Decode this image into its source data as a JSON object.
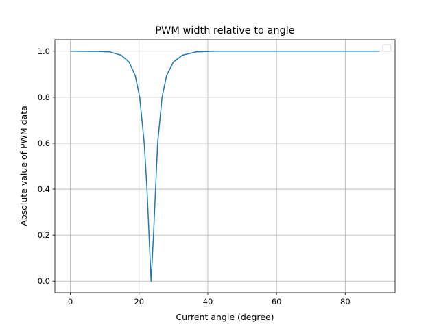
{
  "chart_data": {
    "type": "line",
    "title": "PWM width relative to angle",
    "xlabel": "Current angle (degree)",
    "ylabel": "Absolute value of PWM data",
    "xlim": [
      -4.5,
      94.5
    ],
    "ylim": [
      -0.05,
      1.05
    ],
    "xticks": [
      0,
      20,
      40,
      60,
      80
    ],
    "yticks": [
      0.0,
      0.2,
      0.4,
      0.6,
      0.8,
      1.0
    ],
    "xtick_labels": [
      "0",
      "20",
      "40",
      "60",
      "80"
    ],
    "ytick_labels": [
      "0.0",
      "0.2",
      "0.4",
      "0.6",
      "0.8",
      "1.0"
    ],
    "grid": true,
    "legend": "top-right (empty)",
    "color": "#1f77b4",
    "series": [
      {
        "x": [
          0,
          8,
          11.5,
          14.8,
          17.1,
          18.9,
          20.2,
          21.5,
          22.3,
          22.9,
          23.5,
          24.2,
          24.8,
          25.4,
          26.7,
          28.0,
          30.0,
          32.6,
          36.6,
          42,
          90
        ],
        "y": [
          1.0,
          0.999,
          0.997,
          0.983,
          0.953,
          0.894,
          0.8,
          0.6,
          0.4,
          0.2,
          0.0,
          0.2,
          0.4,
          0.6,
          0.8,
          0.894,
          0.953,
          0.983,
          0.997,
          1.0,
          1.0
        ]
      }
    ]
  }
}
